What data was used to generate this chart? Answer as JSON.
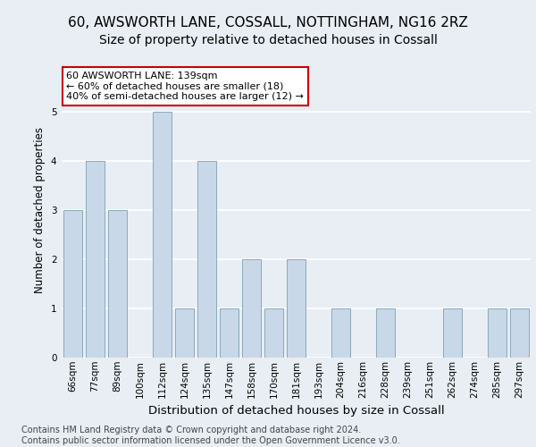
{
  "title1": "60, AWSWORTH LANE, COSSALL, NOTTINGHAM, NG16 2RZ",
  "title2": "Size of property relative to detached houses in Cossall",
  "xlabel": "Distribution of detached houses by size in Cossall",
  "ylabel": "Number of detached properties",
  "categories": [
    "66sqm",
    "77sqm",
    "89sqm",
    "100sqm",
    "112sqm",
    "124sqm",
    "135sqm",
    "147sqm",
    "158sqm",
    "170sqm",
    "181sqm",
    "193sqm",
    "204sqm",
    "216sqm",
    "228sqm",
    "239sqm",
    "251sqm",
    "262sqm",
    "274sqm",
    "285sqm",
    "297sqm"
  ],
  "values": [
    3,
    4,
    3,
    0,
    5,
    1,
    4,
    1,
    2,
    1,
    2,
    0,
    1,
    0,
    1,
    0,
    0,
    1,
    0,
    1,
    1
  ],
  "bar_color": "#c8d8e8",
  "bar_edge_color": "#8aaabb",
  "annotation_text": "60 AWSWORTH LANE: 139sqm\n← 60% of detached houses are smaller (18)\n40% of semi-detached houses are larger (12) →",
  "annotation_box_color": "#ffffff",
  "annotation_box_edge": "#cc0000",
  "ylim": [
    0,
    6
  ],
  "yticks": [
    0,
    1,
    2,
    3,
    4,
    5
  ],
  "footer_text": "Contains HM Land Registry data © Crown copyright and database right 2024.\nContains public sector information licensed under the Open Government Licence v3.0.",
  "bg_color": "#e8eef4",
  "plot_bg_color": "#e8eef4",
  "grid_color": "#ffffff",
  "title1_fontsize": 11,
  "title2_fontsize": 10,
  "xlabel_fontsize": 9.5,
  "ylabel_fontsize": 8.5,
  "tick_fontsize": 7.5,
  "footer_fontsize": 7
}
